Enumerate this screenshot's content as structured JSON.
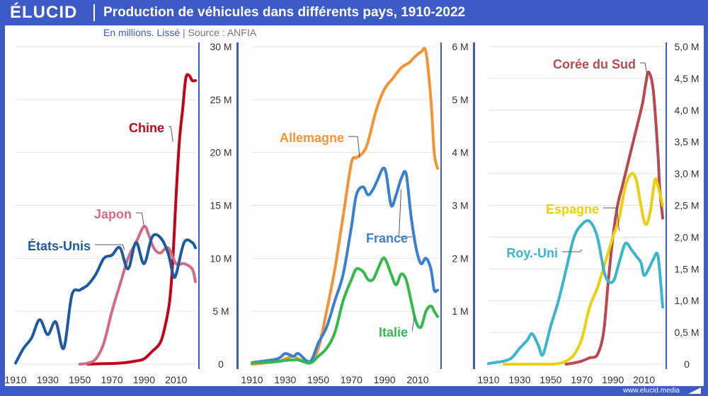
{
  "header": {
    "logo": "ÉLUCID",
    "title": "Production de véhicules dans différents pays, 1910-2022",
    "subtitle_unit": "En millions. Lissé",
    "subtitle_sep": "|",
    "subtitle_source": "Source : ANFIA"
  },
  "footer": {
    "website": "www.elucid.media"
  },
  "chart_data": [
    {
      "type": "line",
      "panel": "left",
      "x_ticks": [
        "1910",
        "1930",
        "1950",
        "1970",
        "1990",
        "2010"
      ],
      "y_ticks": [
        "0",
        "5 M",
        "10 M",
        "15 M",
        "20 M",
        "25 M",
        "30 M"
      ],
      "xlim": [
        1910,
        2022
      ],
      "ylim": [
        0,
        30
      ],
      "series": [
        {
          "name": "Chine",
          "color": "#c0051a",
          "x": [
            1955,
            1965,
            1975,
            1985,
            1990,
            1995,
            2000,
            2003,
            2006,
            2008,
            2010,
            2012,
            2014,
            2016,
            2018,
            2020,
            2022
          ],
          "y": [
            0,
            0.05,
            0.1,
            0.3,
            0.5,
            1.2,
            2,
            3.5,
            6,
            10,
            16,
            21,
            24,
            27,
            27.3,
            26.8,
            26.8
          ]
        },
        {
          "name": "Japon",
          "color": "#d36b85",
          "x": [
            1950,
            1955,
            1960,
            1965,
            1970,
            1975,
            1980,
            1985,
            1990,
            1993,
            1996,
            2000,
            2005,
            2010,
            2015,
            2020,
            2022
          ],
          "y": [
            0,
            0.1,
            0.5,
            2,
            5,
            7.5,
            10,
            11.5,
            13,
            12.2,
            11,
            10.5,
            11,
            9.5,
            9.5,
            9,
            7.8
          ]
        },
        {
          "name": "États-Unis",
          "color": "#1f5aa0",
          "x": [
            1910,
            1915,
            1920,
            1925,
            1930,
            1935,
            1940,
            1945,
            1950,
            1955,
            1960,
            1965,
            1970,
            1975,
            1980,
            1985,
            1990,
            1995,
            2000,
            2005,
            2008,
            2010,
            2015,
            2020,
            2022
          ],
          "y": [
            0.1,
            1.5,
            2.5,
            4.2,
            2.8,
            4,
            1.5,
            6.5,
            7,
            7.5,
            8.5,
            10,
            10.3,
            11,
            9,
            11.5,
            9.5,
            12,
            12,
            10.5,
            8.5,
            8.5,
            11.5,
            11.5,
            11
          ]
        }
      ],
      "labels": [
        {
          "text": "Chine",
          "series": "Chine"
        },
        {
          "text": "Japon",
          "series": "Japon"
        },
        {
          "text": "États-Unis",
          "series": "États-Unis"
        }
      ]
    },
    {
      "type": "line",
      "panel": "middle",
      "x_ticks": [
        "1910",
        "1930",
        "1950",
        "1970",
        "1990",
        "2010"
      ],
      "y_ticks": [
        "1 M",
        "2 M",
        "3 M",
        "4 M",
        "5 M",
        "6 M"
      ],
      "xlim": [
        1910,
        2022
      ],
      "ylim": [
        0,
        6
      ],
      "series": [
        {
          "name": "Allemagne",
          "color": "#f29336",
          "x": [
            1910,
            1925,
            1930,
            1935,
            1938,
            1945,
            1950,
            1955,
            1960,
            1965,
            1970,
            1973,
            1977,
            1980,
            1985,
            1990,
            1995,
            2000,
            2005,
            2008,
            2012,
            2015,
            2018,
            2020,
            2022
          ],
          "y": [
            0,
            0.05,
            0.1,
            0.15,
            0.1,
            0.05,
            0.3,
            1,
            1.8,
            2.8,
            3.8,
            3.9,
            4,
            4.2,
            4.8,
            5.2,
            5.4,
            5.6,
            5.7,
            5.8,
            5.9,
            5.9,
            5,
            4,
            3.7
          ]
        },
        {
          "name": "France",
          "color": "#3b80d0",
          "x": [
            1910,
            1925,
            1930,
            1935,
            1938,
            1945,
            1950,
            1955,
            1960,
            1965,
            1970,
            1973,
            1977,
            1980,
            1983,
            1986,
            1989,
            1991,
            1994,
            1997,
            2000,
            2003,
            2006,
            2009,
            2012,
            2015,
            2018,
            2020,
            2022
          ],
          "y": [
            0.03,
            0.1,
            0.2,
            0.15,
            0.2,
            0.05,
            0.4,
            0.7,
            1.2,
            1.7,
            2.6,
            3.2,
            3.35,
            3.2,
            3.3,
            3.5,
            3.7,
            3.6,
            3,
            3.2,
            3.5,
            3.6,
            2.8,
            2.2,
            1.9,
            2,
            1.8,
            1.4,
            1.4
          ]
        },
        {
          "name": "Italie",
          "color": "#35b94c",
          "x": [
            1910,
            1925,
            1930,
            1935,
            1938,
            1945,
            1950,
            1955,
            1960,
            1965,
            1970,
            1973,
            1977,
            1980,
            1983,
            1986,
            1989,
            1991,
            1994,
            1997,
            2000,
            2003,
            2006,
            2009,
            2012,
            2015,
            2018,
            2020,
            2022
          ],
          "y": [
            0.02,
            0.05,
            0.07,
            0.08,
            0.08,
            0.02,
            0.15,
            0.3,
            0.6,
            1.2,
            1.6,
            1.8,
            1.75,
            1.6,
            1.6,
            1.8,
            2.0,
            1.95,
            1.7,
            1.5,
            1.7,
            1.6,
            1.2,
            0.8,
            0.7,
            1.0,
            1.1,
            1.0,
            0.9
          ]
        }
      ],
      "labels": [
        {
          "text": "Allemagne",
          "series": "Allemagne"
        },
        {
          "text": "France",
          "series": "France"
        },
        {
          "text": "Italie",
          "series": "Italie"
        }
      ]
    },
    {
      "type": "line",
      "panel": "right",
      "x_ticks": [
        "1910",
        "1930",
        "1950",
        "1970",
        "1990",
        "2010"
      ],
      "y_ticks": [
        "0",
        "0,5 M",
        "1,0 M",
        "1,5 M",
        "2,0 M",
        "2,5 M",
        "3,0 M",
        "3,5 M",
        "4,0 M",
        "4,5 M",
        "5,0 M"
      ],
      "xlim": [
        1910,
        2022
      ],
      "ylim": [
        0,
        5
      ],
      "series": [
        {
          "name": "Corée du Sud",
          "color": "#b84a4f",
          "x": [
            1960,
            1965,
            1970,
            1975,
            1980,
            1984,
            1987,
            1990,
            1993,
            1996,
            2000,
            2003,
            2006,
            2009,
            2011,
            2013,
            2016,
            2019,
            2020,
            2022
          ],
          "y": [
            0,
            0.02,
            0.05,
            0.1,
            0.15,
            0.5,
            1.3,
            2.0,
            2.5,
            2.8,
            3.2,
            3.5,
            3.8,
            4.1,
            4.4,
            4.6,
            4.3,
            3.3,
            2.8,
            2.3
          ]
        },
        {
          "name": "Espagne",
          "color": "#ead10f",
          "x": [
            1920,
            1930,
            1940,
            1950,
            1955,
            1960,
            1965,
            1970,
            1975,
            1980,
            1985,
            1990,
            1994,
            1998,
            2002,
            2005,
            2008,
            2011,
            2014,
            2017,
            2019,
            2022
          ],
          "y": [
            0,
            0,
            0,
            0,
            0.01,
            0.05,
            0.15,
            0.4,
            0.9,
            1.2,
            1.6,
            2.0,
            2.3,
            2.8,
            3.0,
            2.9,
            2.5,
            2.2,
            2.4,
            2.9,
            2.8,
            2.5
          ]
        },
        {
          "name": "Roy.-Uni",
          "color": "#3ab6cc",
          "x": [
            1910,
            1915,
            1920,
            1925,
            1930,
            1935,
            1938,
            1942,
            1945,
            1950,
            1955,
            1960,
            1965,
            1970,
            1975,
            1980,
            1985,
            1990,
            1994,
            1998,
            2002,
            2005,
            2008,
            2010,
            2013,
            2016,
            2019,
            2022
          ],
          "y": [
            0.01,
            0.03,
            0.05,
            0.1,
            0.25,
            0.38,
            0.48,
            0.3,
            0.15,
            0.6,
            1.0,
            1.5,
            2.0,
            2.2,
            2.25,
            2.0,
            1.4,
            1.3,
            1.6,
            1.9,
            1.8,
            1.7,
            1.6,
            1.4,
            1.5,
            1.65,
            1.7,
            0.9
          ]
        }
      ],
      "labels": [
        {
          "text": "Corée du Sud",
          "series": "Corée du Sud"
        },
        {
          "text": "Espagne",
          "series": "Espagne"
        },
        {
          "text": "Roy.-Uni",
          "series": "Roy.-Uni"
        }
      ]
    }
  ]
}
